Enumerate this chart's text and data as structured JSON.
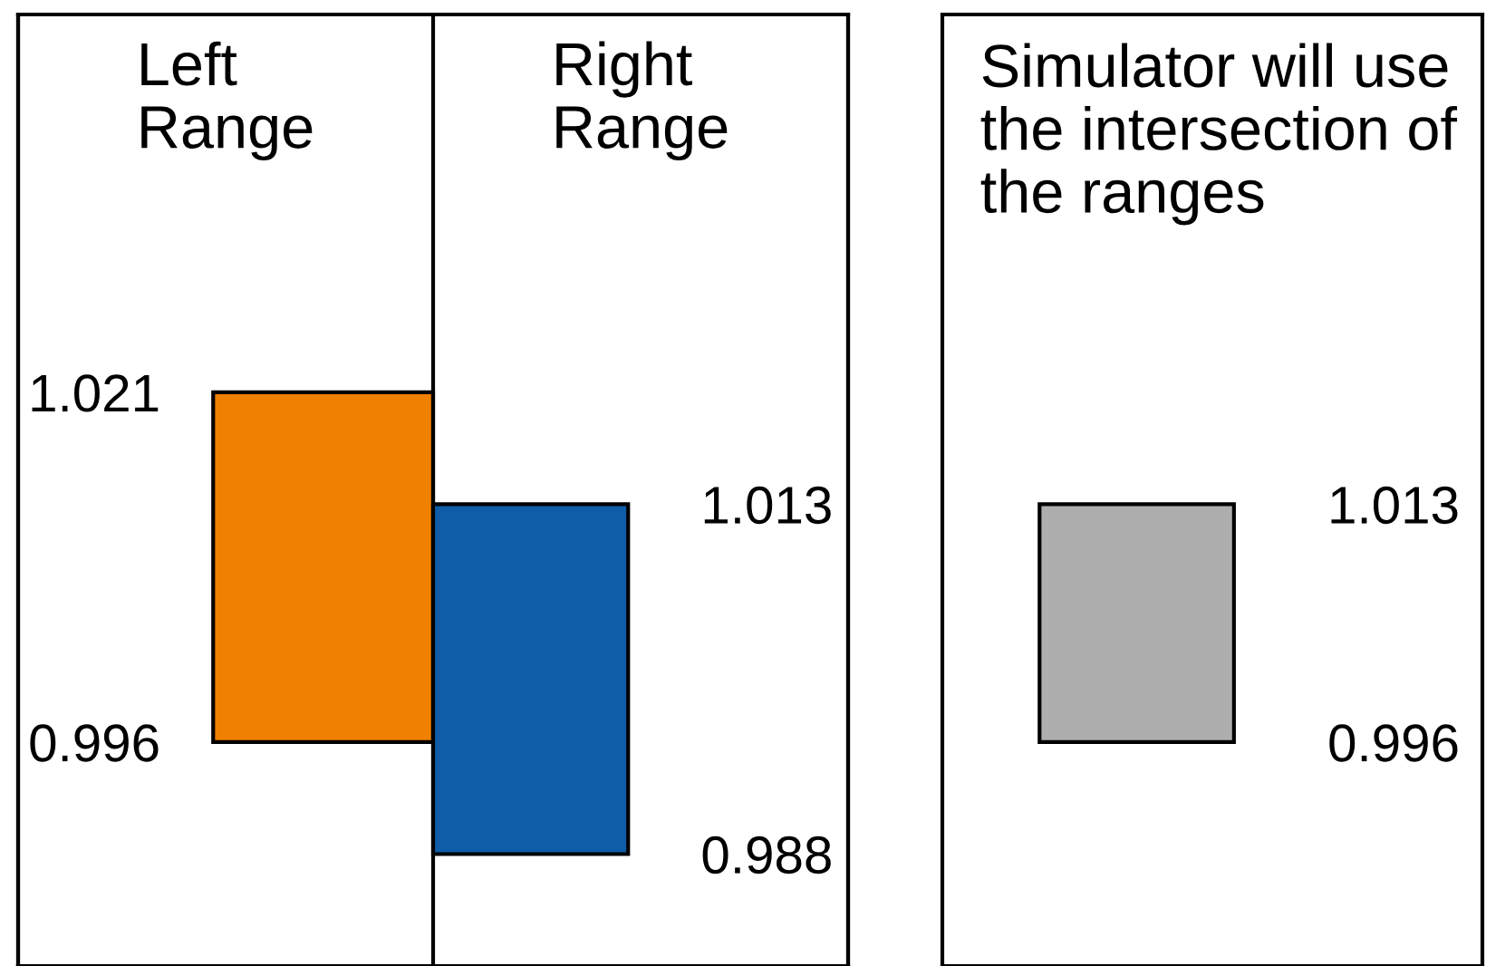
{
  "chart_data": [
    {
      "type": "bar",
      "categories": [
        "Left Range",
        "Right Range"
      ],
      "ylim": [
        0.98,
        1.048
      ],
      "yticks": [
        0.996,
        1.021
      ],
      "y2lim": [
        0.98,
        1.048
      ],
      "y2ticks": [
        0.988,
        1.013
      ],
      "grid": false,
      "series": [
        {
          "color": "#f08000",
          "base": [
            0.996,
            null
          ],
          "values": [
            0.025,
            null
          ]
        },
        {
          "color": "#0f5ca8",
          "axis": "y2",
          "base": [
            null,
            0.988
          ],
          "values": [
            null,
            0.025
          ]
        }
      ]
    },
    {
      "type": "bar",
      "title": "Simulator will use the intersection of the ranges",
      "categories": [
        null
      ],
      "base": [
        0.996
      ],
      "values": [
        0.017
      ],
      "colors": [
        "#aeaeae"
      ],
      "ylim": [
        0.98,
        1.048
      ],
      "yticks": [
        0.996,
        1.013
      ],
      "tick_labels": "y",
      "grid": false
    }
  ]
}
